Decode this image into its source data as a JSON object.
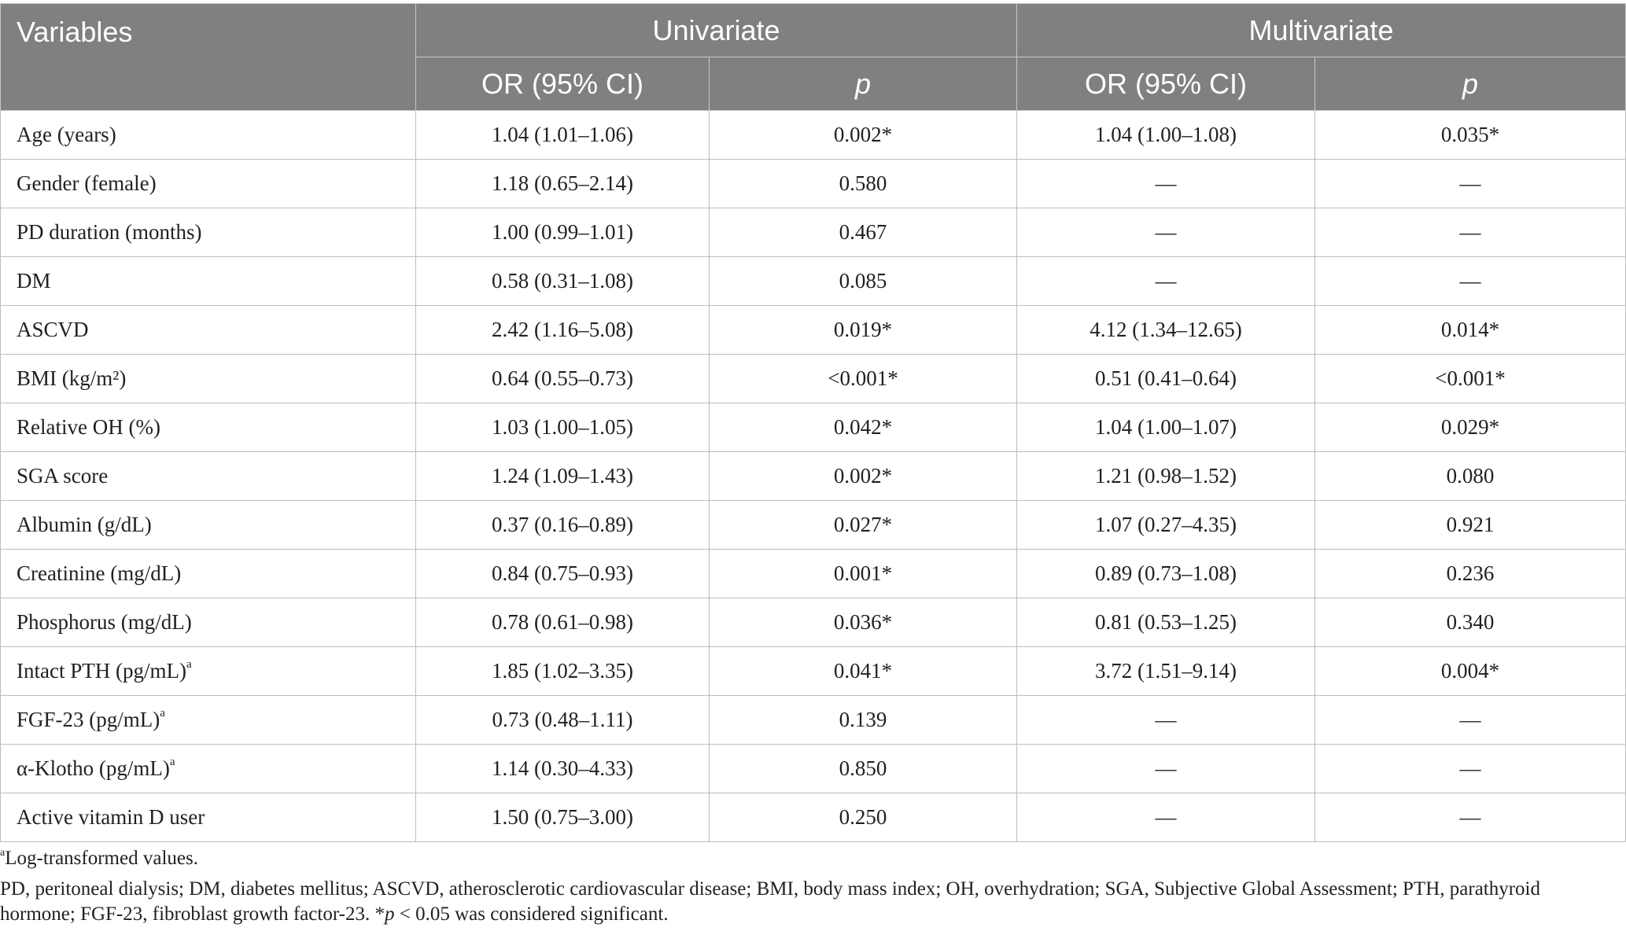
{
  "table": {
    "headers": {
      "variables": "Variables",
      "univariate": "Univariate",
      "multivariate": "Multivariate",
      "or_ci_uni": "OR (95% CI)",
      "p_uni": "p",
      "or_ci_multi": "OR (95% CI)",
      "p_multi": "p"
    },
    "rows": [
      {
        "name": "Age (years)",
        "sup": "",
        "uni_or": "1.04 (1.01–1.06)",
        "uni_p": "0.002*",
        "multi_or": "1.04 (1.00–1.08)",
        "multi_p": "0.035*"
      },
      {
        "name": "Gender (female)",
        "sup": "",
        "uni_or": "1.18 (0.65–2.14)",
        "uni_p": "0.580",
        "multi_or": "—",
        "multi_p": "—"
      },
      {
        "name": "PD duration (months)",
        "sup": "",
        "uni_or": "1.00 (0.99–1.01)",
        "uni_p": "0.467",
        "multi_or": "—",
        "multi_p": "—"
      },
      {
        "name": "DM",
        "sup": "",
        "uni_or": "0.58 (0.31–1.08)",
        "uni_p": "0.085",
        "multi_or": "—",
        "multi_p": "—"
      },
      {
        "name": "ASCVD",
        "sup": "",
        "uni_or": "2.42 (1.16–5.08)",
        "uni_p": "0.019*",
        "multi_or": "4.12 (1.34–12.65)",
        "multi_p": "0.014*"
      },
      {
        "name": "BMI (kg/m²)",
        "sup": "",
        "uni_or": "0.64 (0.55–0.73)",
        "uni_p": "<0.001*",
        "multi_or": "0.51 (0.41–0.64)",
        "multi_p": "<0.001*"
      },
      {
        "name": "Relative OH (%)",
        "sup": "",
        "uni_or": "1.03 (1.00–1.05)",
        "uni_p": "0.042*",
        "multi_or": "1.04 (1.00–1.07)",
        "multi_p": "0.029*"
      },
      {
        "name": "SGA score",
        "sup": "",
        "uni_or": "1.24 (1.09–1.43)",
        "uni_p": "0.002*",
        "multi_or": "1.21 (0.98–1.52)",
        "multi_p": "0.080"
      },
      {
        "name": "Albumin (g/dL)",
        "sup": "",
        "uni_or": "0.37 (0.16–0.89)",
        "uni_p": "0.027*",
        "multi_or": "1.07 (0.27–4.35)",
        "multi_p": "0.921"
      },
      {
        "name": "Creatinine (mg/dL)",
        "sup": "",
        "uni_or": "0.84 (0.75–0.93)",
        "uni_p": "0.001*",
        "multi_or": "0.89 (0.73–1.08)",
        "multi_p": "0.236"
      },
      {
        "name": "Phosphorus (mg/dL)",
        "sup": "",
        "uni_or": "0.78 (0.61–0.98)",
        "uni_p": "0.036*",
        "multi_or": "0.81 (0.53–1.25)",
        "multi_p": "0.340"
      },
      {
        "name": "Intact PTH (pg/mL)",
        "sup": "a",
        "uni_or": "1.85 (1.02–3.35)",
        "uni_p": "0.041*",
        "multi_or": "3.72 (1.51–9.14)",
        "multi_p": "0.004*"
      },
      {
        "name": "FGF-23 (pg/mL)",
        "sup": "a",
        "uni_or": "0.73 (0.48–1.11)",
        "uni_p": "0.139",
        "multi_or": "—",
        "multi_p": "—"
      },
      {
        "name": "α-Klotho (pg/mL)",
        "sup": "a",
        "uni_or": "1.14 (0.30–4.33)",
        "uni_p": "0.850",
        "multi_or": "—",
        "multi_p": "—"
      },
      {
        "name": "Active vitamin D user",
        "sup": "",
        "uni_or": "1.50 (0.75–3.00)",
        "uni_p": "0.250",
        "multi_or": "—",
        "multi_p": "—"
      }
    ]
  },
  "footnotes": {
    "note_a_marker": "a",
    "note_a_text": "Log-transformed values.",
    "abbreviations_main": "PD, peritoneal dialysis; DM, diabetes mellitus; ASCVD, atherosclerotic cardiovascular disease; BMI, body mass index; OH, overhydration; SGA, Subjective Global Assessment; PTH, parathyroid hormone; FGF-23, fibroblast growth factor-23. *",
    "abbreviations_p": "p",
    "abbreviations_tail": " < 0.05 was considered significant."
  }
}
